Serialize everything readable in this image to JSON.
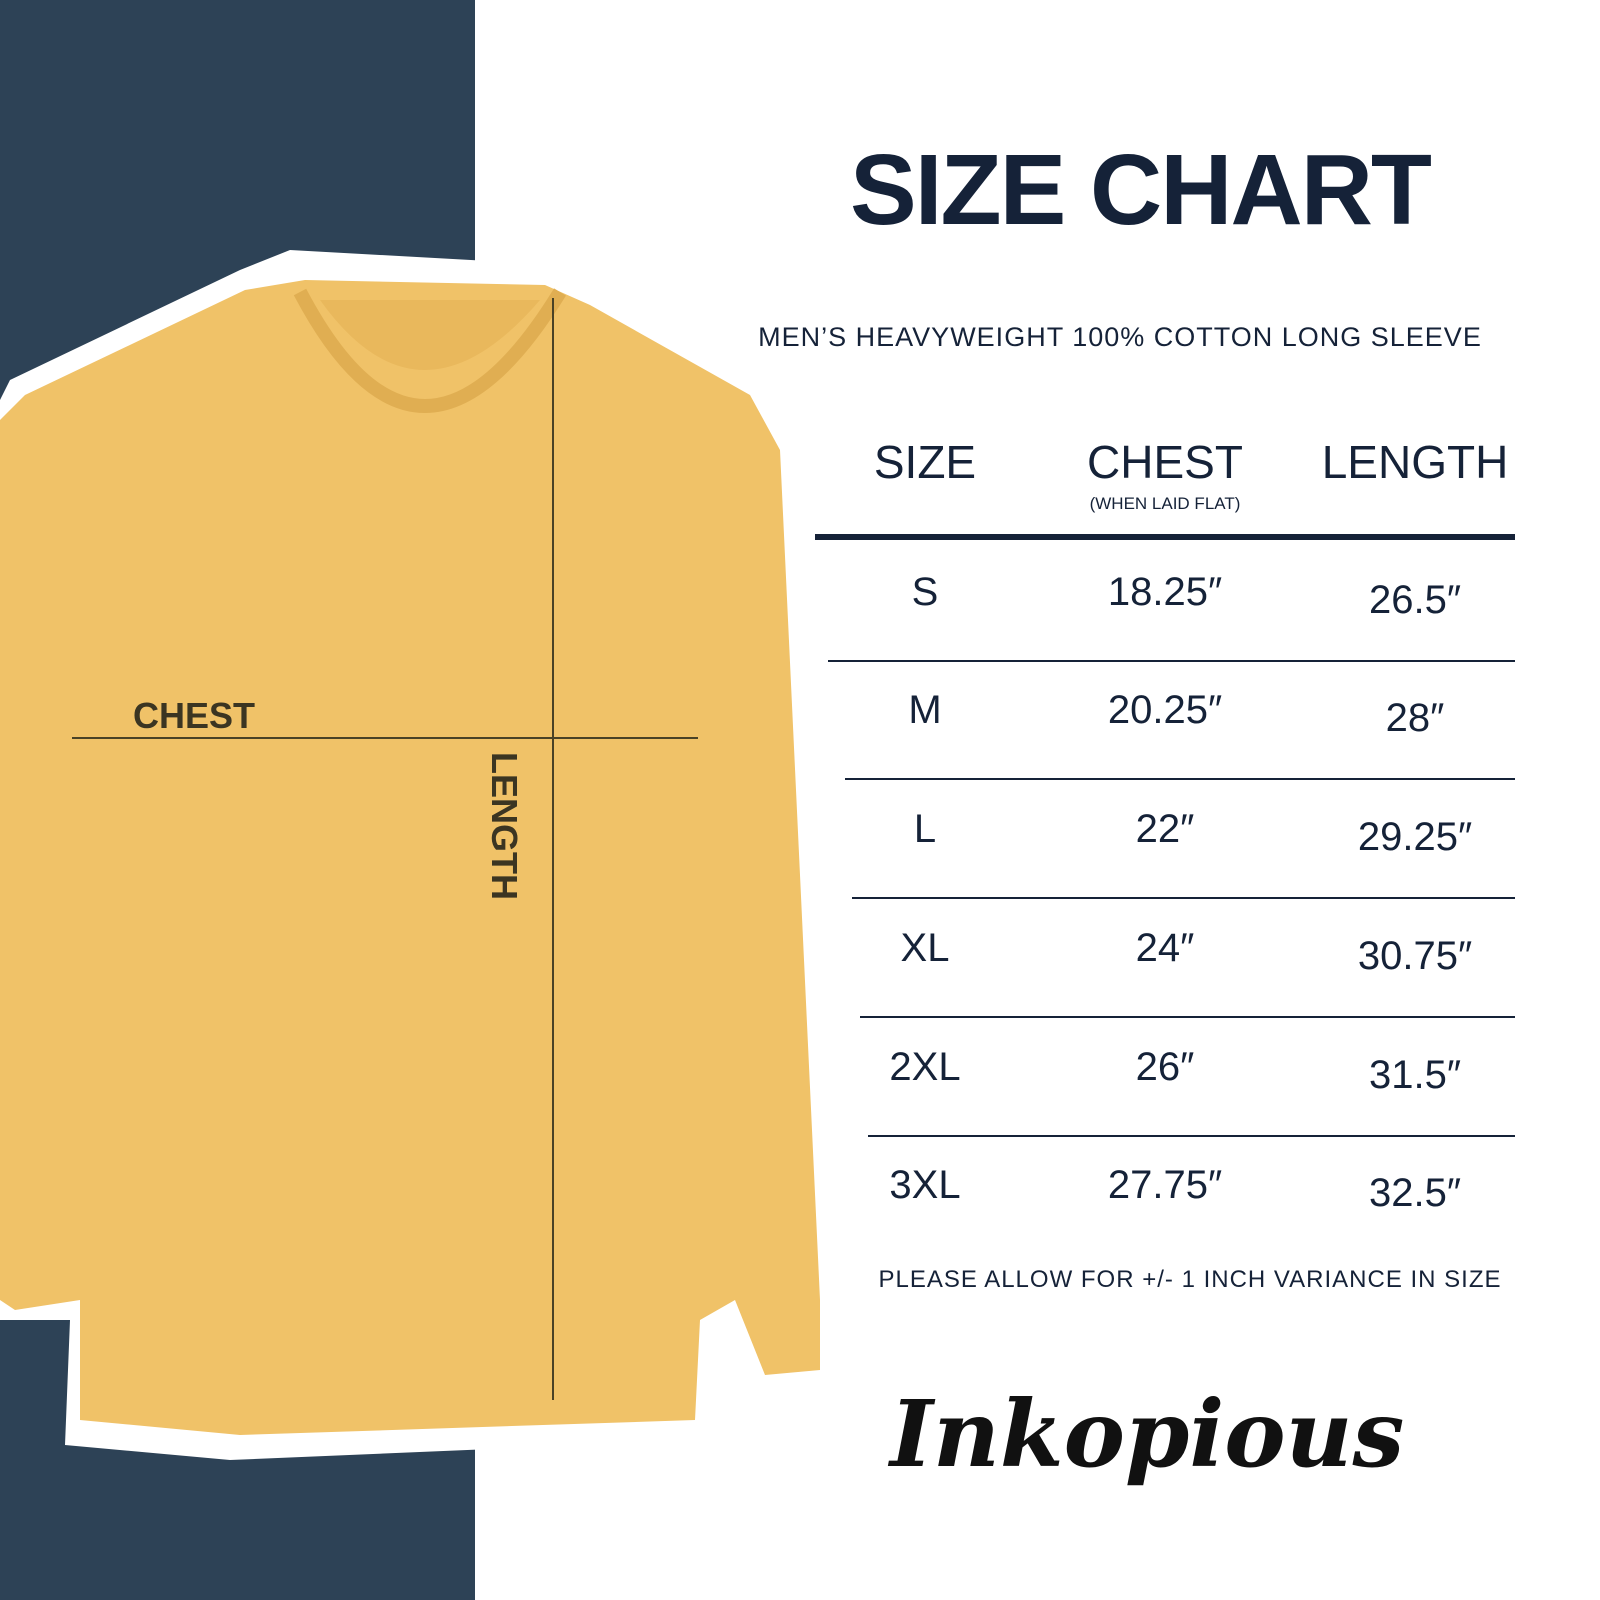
{
  "title": "SIZE CHART",
  "subtitle": "MEN’S HEAVYWEIGHT 100% COTTON LONG SLEEVE",
  "diagram_labels": {
    "chest": "CHEST",
    "length": "LENGTH"
  },
  "table": {
    "headers": {
      "size": "SIZE",
      "chest": "CHEST",
      "chest_note": "(WHEN LAID FLAT)",
      "length": "LENGTH"
    },
    "rows": [
      {
        "size": "S",
        "chest": "18.25″",
        "length": "26.5″"
      },
      {
        "size": "M",
        "chest": "20.25″",
        "length": "28″"
      },
      {
        "size": "L",
        "chest": "22″",
        "length": "29.25″"
      },
      {
        "size": "XL",
        "chest": "24″",
        "length": "30.75″"
      },
      {
        "size": "2XL",
        "chest": "26″",
        "length": "31.5″"
      },
      {
        "size": "3XL",
        "chest": "27.75″",
        "length": "32.5″"
      }
    ]
  },
  "variance_note": "PLEASE ALLOW FOR +/- 1 INCH VARIANCE IN SIZE",
  "brand": "Inkopious",
  "colors": {
    "navy": "#2d4256",
    "text": "#152238",
    "shirt": "#f0c268"
  }
}
